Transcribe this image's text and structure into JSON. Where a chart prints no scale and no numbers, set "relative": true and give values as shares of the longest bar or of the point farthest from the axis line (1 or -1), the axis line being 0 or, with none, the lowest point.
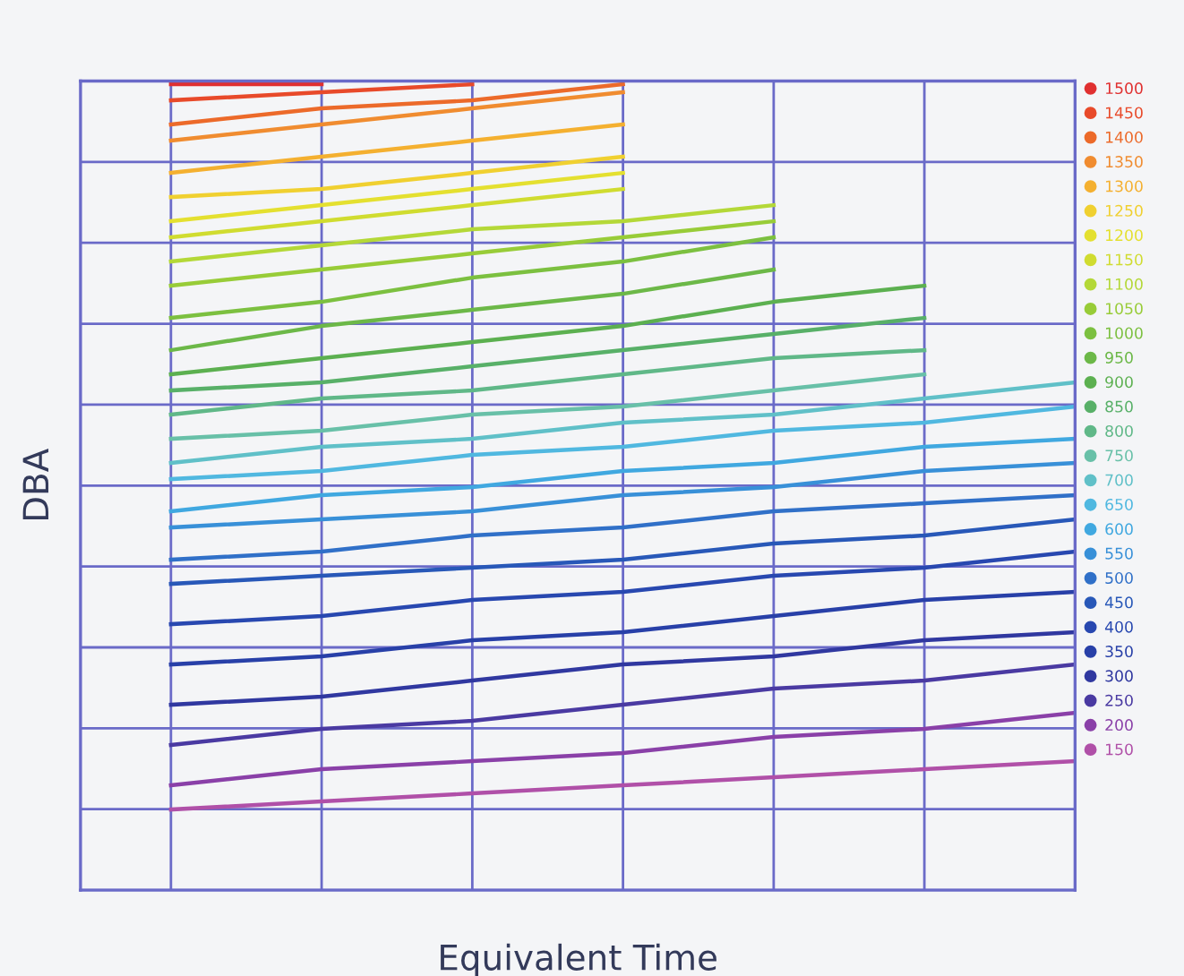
{
  "chart_data": {
    "type": "line",
    "xlabel": "Equivalent Time",
    "ylabel": "DBA",
    "relative": true,
    "grid": true,
    "legend": "right",
    "marker": "none",
    "line_style": "solid",
    "categories": [
      null,
      null,
      null,
      null,
      null,
      null,
      null
    ],
    "series": [
      {
        "name": "1500",
        "color": "#e03030",
        "values": [
          1.0,
          1.0,
          null,
          null,
          null,
          null,
          null
        ]
      },
      {
        "name": "1450",
        "color": "#e84a2a",
        "values": [
          0.98,
          0.99,
          1.0,
          null,
          null,
          null,
          null
        ]
      },
      {
        "name": "1400",
        "color": "#ec6a2a",
        "values": [
          0.95,
          0.97,
          0.98,
          1.0,
          null,
          null,
          null
        ]
      },
      {
        "name": "1350",
        "color": "#f08c30",
        "values": [
          0.93,
          0.95,
          0.97,
          0.99,
          null,
          null,
          null
        ]
      },
      {
        "name": "1300",
        "color": "#f4b030",
        "values": [
          0.89,
          0.91,
          0.93,
          0.95,
          null,
          null,
          null
        ]
      },
      {
        "name": "1250",
        "color": "#f0d030",
        "values": [
          0.86,
          0.87,
          0.89,
          0.91,
          null,
          null,
          null
        ]
      },
      {
        "name": "1200",
        "color": "#e4e030",
        "values": [
          0.83,
          0.85,
          0.87,
          0.89,
          null,
          null,
          null
        ]
      },
      {
        "name": "1150",
        "color": "#d0dc30",
        "values": [
          0.81,
          0.83,
          0.85,
          0.87,
          null,
          null,
          null
        ]
      },
      {
        "name": "1100",
        "color": "#b4d838",
        "values": [
          0.78,
          0.8,
          0.82,
          0.83,
          0.85,
          null,
          null
        ]
      },
      {
        "name": "1050",
        "color": "#98cc38",
        "values": [
          0.75,
          0.77,
          0.79,
          0.81,
          0.83,
          null,
          null
        ]
      },
      {
        "name": "1000",
        "color": "#7cc040",
        "values": [
          0.71,
          0.73,
          0.76,
          0.78,
          0.81,
          null,
          null
        ]
      },
      {
        "name": "950",
        "color": "#6cb848",
        "values": [
          0.67,
          0.7,
          0.72,
          0.74,
          0.77,
          null,
          null
        ]
      },
      {
        "name": "900",
        "color": "#5cb050",
        "values": [
          0.64,
          0.66,
          0.68,
          0.7,
          0.73,
          0.75,
          null
        ]
      },
      {
        "name": "850",
        "color": "#58b068",
        "values": [
          0.62,
          0.63,
          0.65,
          0.67,
          0.69,
          0.71,
          null
        ]
      },
      {
        "name": "800",
        "color": "#60b888",
        "values": [
          0.59,
          0.61,
          0.62,
          0.64,
          0.66,
          0.67,
          null
        ]
      },
      {
        "name": "750",
        "color": "#68c0a8",
        "values": [
          0.56,
          0.57,
          0.59,
          0.6,
          0.62,
          0.64,
          null
        ]
      },
      {
        "name": "700",
        "color": "#60c0c8",
        "values": [
          0.53,
          0.55,
          0.56,
          0.58,
          0.59,
          0.61,
          0.63
        ]
      },
      {
        "name": "650",
        "color": "#50b8e0",
        "values": [
          0.51,
          0.52,
          0.54,
          0.55,
          0.57,
          0.58,
          0.6
        ]
      },
      {
        "name": "600",
        "color": "#40a8e0",
        "values": [
          0.47,
          0.49,
          0.5,
          0.52,
          0.53,
          0.55,
          0.56
        ]
      },
      {
        "name": "550",
        "color": "#3890d8",
        "values": [
          0.45,
          0.46,
          0.47,
          0.49,
          0.5,
          0.52,
          0.53
        ]
      },
      {
        "name": "500",
        "color": "#3070c8",
        "values": [
          0.41,
          0.42,
          0.44,
          0.45,
          0.47,
          0.48,
          0.49
        ]
      },
      {
        "name": "450",
        "color": "#2858b8",
        "values": [
          0.38,
          0.39,
          0.4,
          0.41,
          0.43,
          0.44,
          0.46
        ]
      },
      {
        "name": "400",
        "color": "#2848b0",
        "values": [
          0.33,
          0.34,
          0.36,
          0.37,
          0.39,
          0.4,
          0.42
        ]
      },
      {
        "name": "350",
        "color": "#2840a8",
        "values": [
          0.28,
          0.29,
          0.31,
          0.32,
          0.34,
          0.36,
          0.37
        ]
      },
      {
        "name": "300",
        "color": "#3038a0",
        "values": [
          0.23,
          0.24,
          0.26,
          0.28,
          0.29,
          0.31,
          0.32
        ]
      },
      {
        "name": "250",
        "color": "#4a3aa2",
        "values": [
          0.18,
          0.2,
          0.21,
          0.23,
          0.25,
          0.26,
          0.28
        ]
      },
      {
        "name": "200",
        "color": "#8a40a8",
        "values": [
          0.13,
          0.15,
          0.16,
          0.17,
          0.19,
          0.2,
          0.22
        ]
      },
      {
        "name": "150",
        "color": "#b050a8",
        "values": [
          0.1,
          0.11,
          0.12,
          0.13,
          0.14,
          0.15,
          0.16
        ]
      }
    ]
  }
}
